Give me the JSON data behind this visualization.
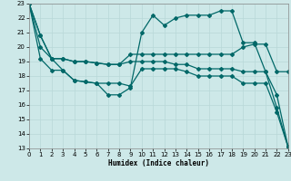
{
  "xlabel": "Humidex (Indice chaleur)",
  "xlim": [
    0,
    23
  ],
  "ylim": [
    13,
    23
  ],
  "xticks": [
    0,
    1,
    2,
    3,
    4,
    5,
    6,
    7,
    8,
    9,
    10,
    11,
    12,
    13,
    14,
    15,
    16,
    17,
    18,
    19,
    20,
    21,
    22,
    23
  ],
  "yticks": [
    13,
    14,
    15,
    16,
    17,
    18,
    19,
    20,
    21,
    22,
    23
  ],
  "bg_color": "#cde8e8",
  "grid_color": "#b8d8d8",
  "line_color": "#006868",
  "line1_y": [
    23,
    20.8,
    19.2,
    19.2,
    19.0,
    19.0,
    18.9,
    18.8,
    18.8,
    19.5,
    19.5,
    19.5,
    19.5,
    19.5,
    19.5,
    19.5,
    19.5,
    19.5,
    19.5,
    20.0,
    20.2,
    20.2,
    18.3,
    18.3
  ],
  "line2_y": [
    23,
    20.8,
    19.2,
    18.4,
    17.7,
    17.6,
    17.5,
    16.7,
    16.7,
    17.2,
    21.0,
    22.2,
    21.5,
    22.0,
    22.2,
    22.2,
    22.2,
    22.5,
    22.5,
    20.3,
    20.3,
    18.3,
    15.8,
    13.1
  ],
  "line3_y": [
    23,
    20.0,
    19.2,
    19.2,
    19.0,
    19.0,
    18.9,
    18.8,
    18.8,
    19.0,
    19.0,
    19.0,
    19.0,
    18.8,
    18.8,
    18.5,
    18.5,
    18.5,
    18.5,
    18.3,
    18.3,
    18.3,
    16.7,
    13.1
  ],
  "line4_y": [
    23,
    19.2,
    18.4,
    18.4,
    17.7,
    17.6,
    17.5,
    17.5,
    17.5,
    17.3,
    18.5,
    18.5,
    18.5,
    18.5,
    18.3,
    18.0,
    18.0,
    18.0,
    18.0,
    17.5,
    17.5,
    17.5,
    15.5,
    13.1
  ]
}
